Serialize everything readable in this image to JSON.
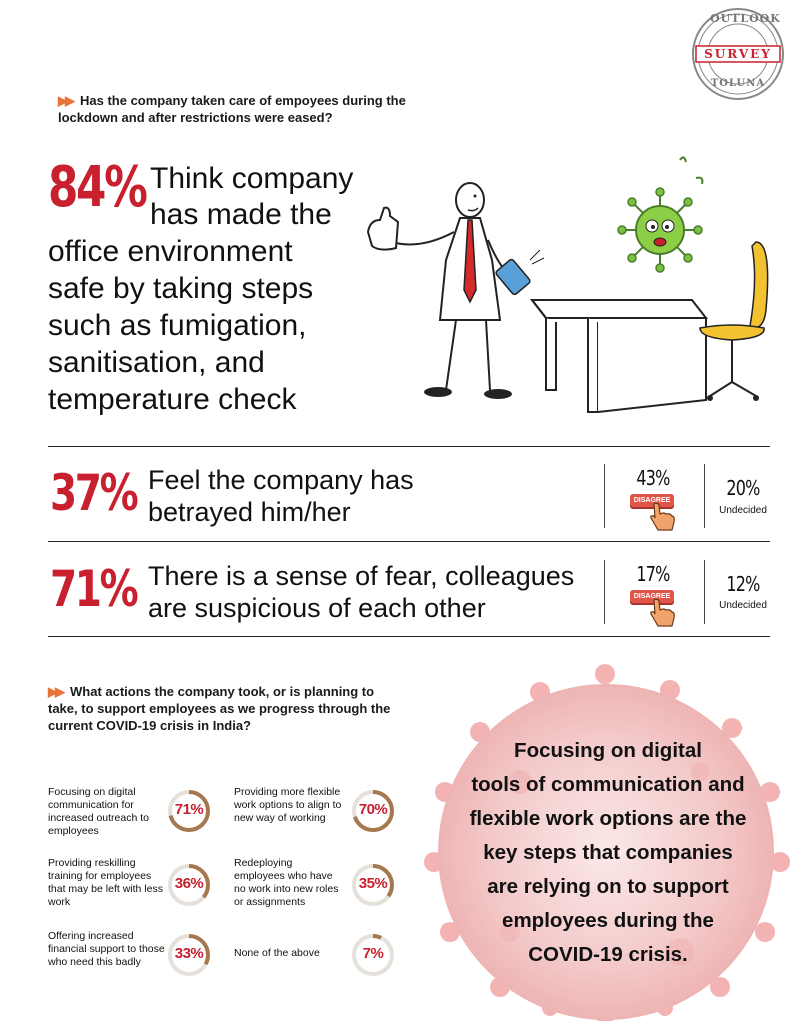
{
  "stamp": {
    "top": "OUTLOOK",
    "middle": "SURVEY",
    "bottom": "TOLUNA"
  },
  "q1": {
    "text": "Has the company taken care of empoyees during the lockdown and after restrictions were eased?"
  },
  "stat1": {
    "pct": "84%",
    "lines": [
      "Think company",
      "has made the",
      "office environment",
      "safe by taking steps",
      "such as fumigation,",
      "sanitisation, and",
      "temperature check"
    ]
  },
  "stat2": {
    "pct": "37%",
    "line1": "Feel the company has",
    "line2": "betrayed him/her",
    "disagree_pct": "43%",
    "disagree_label": "DISAGREE",
    "undecided_pct": "20%",
    "undecided_label": "Undecided"
  },
  "stat3": {
    "pct": "71%",
    "line1": "There is a sense of fear, colleagues",
    "line2": "are suspicious of each other",
    "disagree_pct": "17%",
    "disagree_label": "DISAGREE",
    "undecided_pct": "12%",
    "undecided_label": "Undecided"
  },
  "q2": {
    "text": "What actions the company took, or is planning to take, to support employees as we progress through the current COVID-19 crisis in India?"
  },
  "actions": [
    {
      "text": "Focusing on digital communication for increased outreach to employees",
      "label": "71%",
      "value": 71
    },
    {
      "text": "Providing more flexible work options to align to new way of working",
      "label": "70%",
      "value": 70
    },
    {
      "text": "Providing reskilling training for employees that may be left with less work",
      "label": "36%",
      "value": 36
    },
    {
      "text": "Redeploying employees who have no work into new roles or assignments",
      "label": "35%",
      "value": 35
    },
    {
      "text": "Offering increased financial support to those who need this badly",
      "label": "33%",
      "value": 33
    },
    {
      "text": "None of the above",
      "label": "7%",
      "value": 7
    }
  ],
  "callout": {
    "lines": [
      "Focusing on digital",
      "tools of communication and",
      "flexible work options are the",
      "key steps that companies",
      "are relying on to support",
      "employees during the",
      "COVID-19 crisis."
    ]
  },
  "colors": {
    "accent_red": "#c8202f",
    "arrow_orange": "#e8743b",
    "donut_ring": "#a6784f",
    "virus_pink": "#f2c4c4"
  }
}
